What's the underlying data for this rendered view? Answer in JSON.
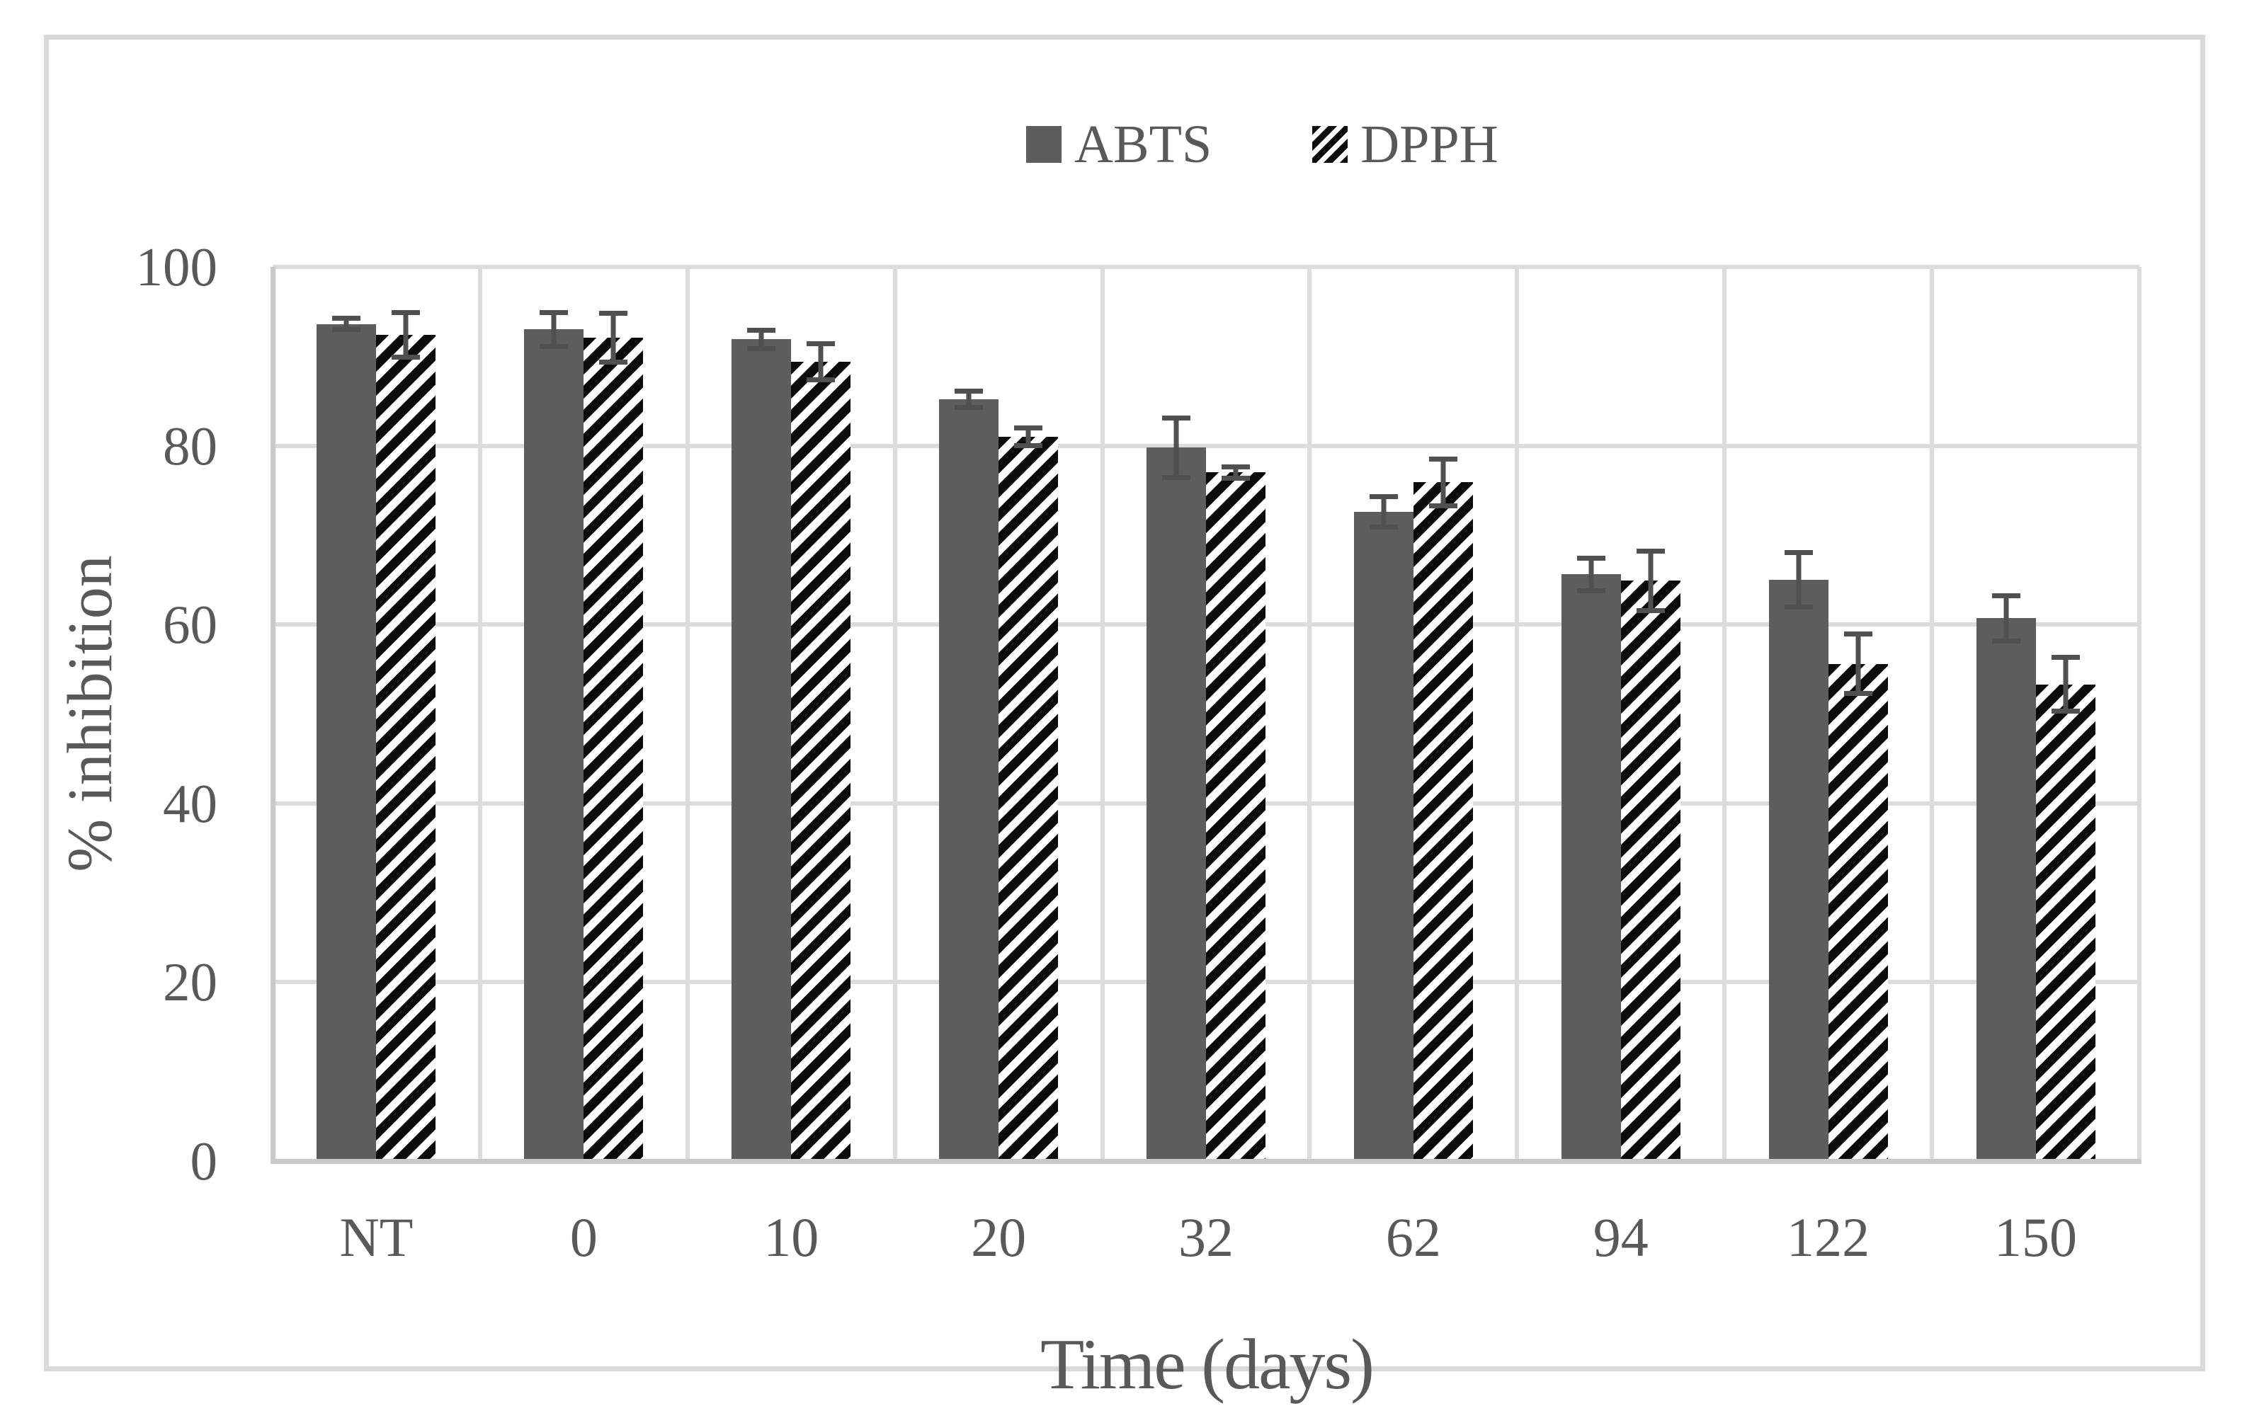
{
  "figure": {
    "kind": "scientific bar chart figure",
    "background": "#ffffff",
    "border_color": "#d9d9d9"
  },
  "legend": {
    "position": "top-center",
    "items": [
      {
        "label": "ABTS",
        "swatch": "solid-gray-square"
      },
      {
        "label": "DPPH",
        "swatch": "diagonal-hatched-square"
      }
    ]
  },
  "axes": {
    "y_title": "% inhibition",
    "x_title": "Time (days)",
    "y_min": 0,
    "y_max": 100,
    "y_tick_interval": 20,
    "y_tick_labels": [
      "0",
      "20",
      "40",
      "60",
      "80",
      "100"
    ],
    "x_tick_labels": [
      "NT",
      "0",
      "10",
      "20",
      "32",
      "62",
      "94",
      "122",
      "150"
    ]
  },
  "chart_data": {
    "type": "bar",
    "title": "",
    "xlabel": "Time (days)",
    "ylabel": "% inhibition",
    "ylim": [
      0,
      100
    ],
    "yticks": [
      0,
      20,
      40,
      60,
      80,
      100
    ],
    "grid": true,
    "legend_position": "top-center",
    "categories": [
      "NT",
      "0",
      "10",
      "20",
      "32",
      "62",
      "94",
      "122",
      "150"
    ],
    "series": [
      {
        "name": "ABTS",
        "style": "solid",
        "values": [
          93.6,
          93.0,
          91.9,
          85.2,
          79.8,
          72.6,
          65.6,
          65.0,
          60.7
        ],
        "errors": [
          0.9,
          2.2,
          1.3,
          1.2,
          3.6,
          2.0,
          2.1,
          3.3,
          2.8
        ]
      },
      {
        "name": "DPPH",
        "style": "hatched",
        "values": [
          92.4,
          92.1,
          89.4,
          81.0,
          77.0,
          75.9,
          64.9,
          55.6,
          53.3
        ],
        "errors": [
          2.8,
          3.0,
          2.3,
          1.3,
          0.9,
          2.9,
          3.6,
          3.6,
          3.3
        ]
      }
    ],
    "error_bars": true
  },
  "colors": {
    "bar_solid": "#5d5d5d",
    "hatch_foreground": "#0b0b0b",
    "hatch_background": "#ffffff",
    "error_bar": "#505050",
    "text": "#595959",
    "gridline": "#dcdcdc",
    "axis_line": "#c9c9c9",
    "figure_border": "#d9d9d9"
  }
}
